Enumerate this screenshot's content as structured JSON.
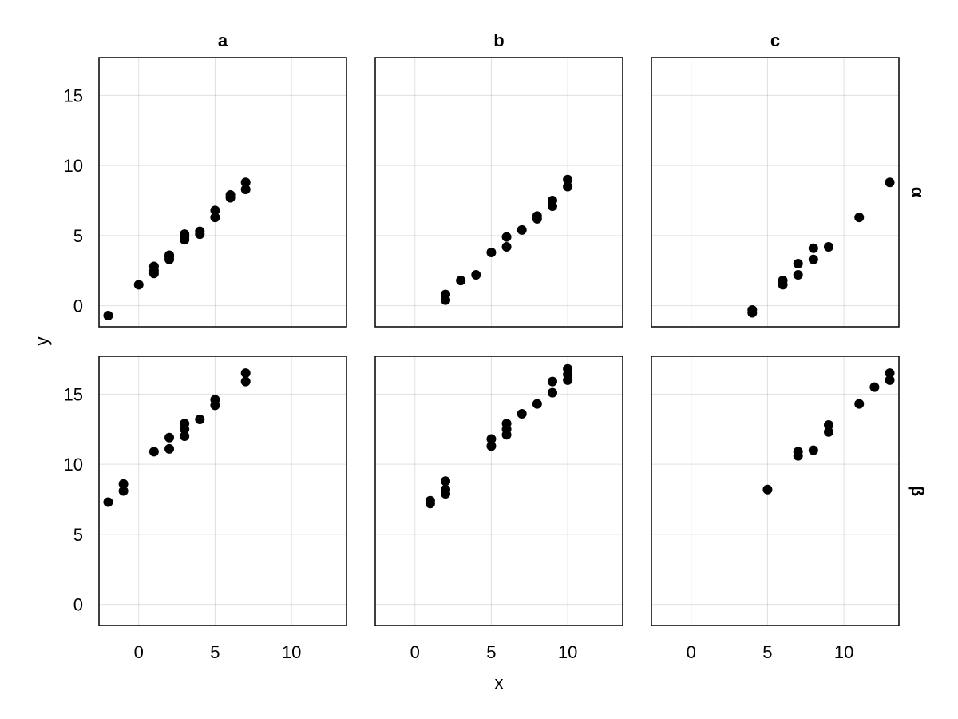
{
  "chart_data": {
    "type": "scatter",
    "xlabel": "x",
    "ylabel": "y",
    "xlim": [
      -2.6,
      13.6
    ],
    "ylim": [
      -1.5,
      17.7
    ],
    "xticks": [
      0,
      5,
      10
    ],
    "yticks": [
      0,
      5,
      10,
      15
    ],
    "xtick_labels": [
      "0",
      "5",
      "10"
    ],
    "ytick_labels": [
      "0",
      "5",
      "10",
      "15"
    ],
    "grid": true,
    "marker_color": "#000000",
    "columns": [
      "a",
      "b",
      "c"
    ],
    "rows": [
      "α",
      "β"
    ],
    "panels": [
      {
        "row": "α",
        "col": "a",
        "points": [
          [
            -2,
            -0.7
          ],
          [
            0,
            1.5
          ],
          [
            1,
            2.3
          ],
          [
            1,
            2.5
          ],
          [
            1,
            2.8
          ],
          [
            2,
            3.3
          ],
          [
            2,
            3.5
          ],
          [
            2,
            3.6
          ],
          [
            3,
            4.7
          ],
          [
            3,
            4.9
          ],
          [
            3,
            5.1
          ],
          [
            4,
            5.1
          ],
          [
            4,
            5.3
          ],
          [
            5,
            6.3
          ],
          [
            5,
            6.8
          ],
          [
            6,
            7.7
          ],
          [
            6,
            7.9
          ],
          [
            7,
            8.3
          ],
          [
            7,
            8.8
          ]
        ]
      },
      {
        "row": "α",
        "col": "b",
        "points": [
          [
            2,
            0.4
          ],
          [
            2,
            0.8
          ],
          [
            3,
            1.8
          ],
          [
            4,
            2.2
          ],
          [
            5,
            3.8
          ],
          [
            6,
            4.2
          ],
          [
            6,
            4.9
          ],
          [
            7,
            5.4
          ],
          [
            8,
            6.2
          ],
          [
            8,
            6.4
          ],
          [
            9,
            7.1
          ],
          [
            9,
            7.5
          ],
          [
            10,
            8.5
          ],
          [
            10,
            9.0
          ]
        ]
      },
      {
        "row": "α",
        "col": "c",
        "points": [
          [
            4,
            -0.5
          ],
          [
            4,
            -0.3
          ],
          [
            6,
            1.5
          ],
          [
            6,
            1.8
          ],
          [
            7,
            2.2
          ],
          [
            7,
            3.0
          ],
          [
            8,
            3.3
          ],
          [
            8,
            4.1
          ],
          [
            9,
            4.2
          ],
          [
            11,
            6.3
          ],
          [
            13,
            8.8
          ]
        ]
      },
      {
        "row": "β",
        "col": "a",
        "points": [
          [
            -2,
            7.3
          ],
          [
            -1,
            8.1
          ],
          [
            -1,
            8.6
          ],
          [
            1,
            10.9
          ],
          [
            2,
            11.1
          ],
          [
            2,
            11.9
          ],
          [
            3,
            12.0
          ],
          [
            3,
            12.5
          ],
          [
            3,
            12.9
          ],
          [
            4,
            13.2
          ],
          [
            5,
            14.2
          ],
          [
            5,
            14.6
          ],
          [
            7,
            15.9
          ],
          [
            7,
            16.5
          ]
        ]
      },
      {
        "row": "β",
        "col": "b",
        "points": [
          [
            1,
            7.2
          ],
          [
            1,
            7.4
          ],
          [
            2,
            7.9
          ],
          [
            2,
            8.2
          ],
          [
            2,
            8.8
          ],
          [
            5,
            11.3
          ],
          [
            5,
            11.8
          ],
          [
            6,
            12.1
          ],
          [
            6,
            12.5
          ],
          [
            6,
            12.9
          ],
          [
            7,
            13.6
          ],
          [
            8,
            14.3
          ],
          [
            9,
            15.1
          ],
          [
            9,
            15.9
          ],
          [
            10,
            16.0
          ],
          [
            10,
            16.4
          ],
          [
            10,
            16.8
          ]
        ]
      },
      {
        "row": "β",
        "col": "c",
        "points": [
          [
            5,
            8.2
          ],
          [
            7,
            10.6
          ],
          [
            7,
            10.9
          ],
          [
            8,
            11.0
          ],
          [
            9,
            12.3
          ],
          [
            9,
            12.8
          ],
          [
            11,
            14.3
          ],
          [
            12,
            15.5
          ],
          [
            13,
            16.0
          ],
          [
            13,
            16.5
          ]
        ]
      }
    ]
  }
}
